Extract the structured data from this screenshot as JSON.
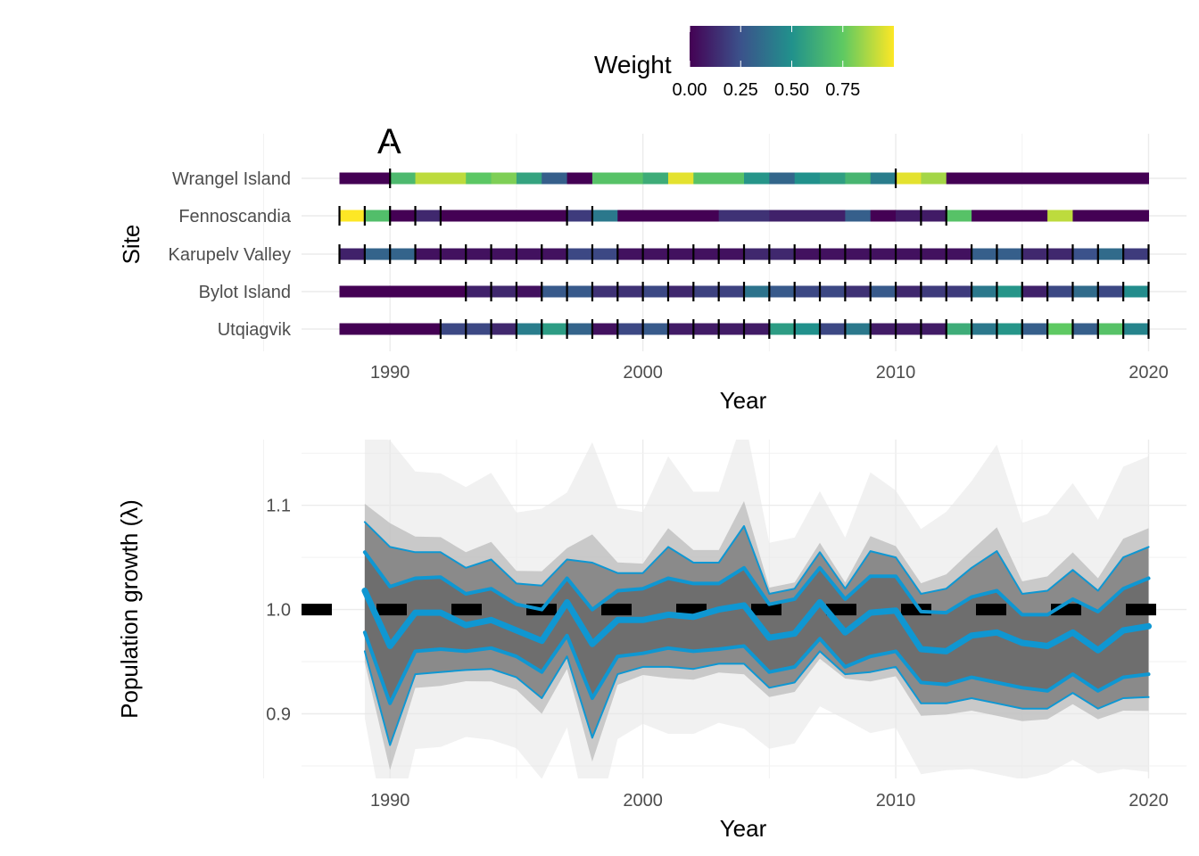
{
  "chart_data": [
    {
      "type": "heatmap",
      "panel_label": "A",
      "xlabel": "Year",
      "ylabel": "Site",
      "xlim": [
        1986.5,
        2021.5
      ],
      "x_ticks": [
        1990,
        2000,
        2010,
        2020
      ],
      "sites": [
        "Wrangel Island",
        "Fennoscandia",
        "Karupelv Valley",
        "Bylot Island",
        "Utqiagvik"
      ],
      "legend": {
        "title": "Weight",
        "ticks": [
          "0.00",
          "0.25",
          "0.50",
          "0.75"
        ],
        "range": [
          0,
          1
        ],
        "position": "top",
        "colors": [
          "#440154",
          "#3b528b",
          "#21918c",
          "#5ec962",
          "#fde725"
        ]
      },
      "rows": [
        {
          "site": "Wrangel Island",
          "marks": [
            1990,
            2010
          ],
          "segments": [
            [
              1988,
              1990,
              0.0
            ],
            [
              1990,
              1991,
              0.68
            ],
            [
              1991,
              1993,
              0.9
            ],
            [
              1993,
              1994,
              0.74
            ],
            [
              1994,
              1995,
              0.8
            ],
            [
              1995,
              1996,
              0.58
            ],
            [
              1996,
              1997,
              0.3
            ],
            [
              1997,
              1998,
              0.0
            ],
            [
              1998,
              2000,
              0.72
            ],
            [
              2000,
              2001,
              0.62
            ],
            [
              2001,
              2002,
              0.96
            ],
            [
              2002,
              2004,
              0.72
            ],
            [
              2004,
              2005,
              0.52
            ],
            [
              2005,
              2006,
              0.33
            ],
            [
              2006,
              2007,
              0.5
            ],
            [
              2007,
              2008,
              0.56
            ],
            [
              2008,
              2009,
              0.66
            ],
            [
              2009,
              2010,
              0.42
            ],
            [
              2010,
              2011,
              0.96
            ],
            [
              2011,
              2012,
              0.86
            ],
            [
              2012,
              2020,
              0.0
            ]
          ]
        },
        {
          "site": "Fennoscandia",
          "marks": [
            1988,
            1989,
            1990,
            1991,
            1992,
            1997,
            1998,
            2011,
            2012
          ],
          "segments": [
            [
              1988,
              1989,
              1.0
            ],
            [
              1989,
              1990,
              0.7
            ],
            [
              1990,
              1991,
              0.0
            ],
            [
              1991,
              1992,
              0.12
            ],
            [
              1992,
              1997,
              0.0
            ],
            [
              1997,
              1998,
              0.18
            ],
            [
              1998,
              1999,
              0.4
            ],
            [
              1999,
              2003,
              0.0
            ],
            [
              2003,
              2005,
              0.15
            ],
            [
              2005,
              2008,
              0.1
            ],
            [
              2008,
              2009,
              0.3
            ],
            [
              2009,
              2010,
              0.0
            ],
            [
              2010,
              2012,
              0.08
            ],
            [
              2012,
              2013,
              0.72
            ],
            [
              2013,
              2016,
              0.0
            ],
            [
              2016,
              2017,
              0.9
            ],
            [
              2017,
              2020,
              0.0
            ]
          ]
        },
        {
          "site": "Karupelv Valley",
          "marks": [
            1988,
            1989,
            1990,
            1991,
            1992,
            1993,
            1994,
            1995,
            1996,
            1997,
            1998,
            1999,
            2000,
            2001,
            2002,
            2003,
            2004,
            2005,
            2006,
            2007,
            2008,
            2009,
            2010,
            2011,
            2012,
            2013,
            2014,
            2015,
            2016,
            2017,
            2018,
            2019,
            2020
          ],
          "segments": [
            [
              1988,
              1989,
              0.1
            ],
            [
              1989,
              1991,
              0.32
            ],
            [
              1991,
              1997,
              0.05
            ],
            [
              1997,
              1999,
              0.22
            ],
            [
              1999,
              2004,
              0.05
            ],
            [
              2004,
              2006,
              0.12
            ],
            [
              2006,
              2013,
              0.05
            ],
            [
              2013,
              2015,
              0.3
            ],
            [
              2015,
              2017,
              0.12
            ],
            [
              2017,
              2018,
              0.25
            ],
            [
              2018,
              2019,
              0.35
            ],
            [
              2019,
              2020,
              0.18
            ]
          ]
        },
        {
          "site": "Bylot Island",
          "marks": [
            1993,
            1994,
            1995,
            1996,
            1997,
            1998,
            1999,
            2000,
            2001,
            2002,
            2003,
            2004,
            2005,
            2006,
            2007,
            2008,
            2009,
            2010,
            2011,
            2012,
            2013,
            2014,
            2015,
            2016,
            2017,
            2018,
            2019,
            2020
          ],
          "segments": [
            [
              1988,
              1993,
              0.0
            ],
            [
              1993,
              1994,
              0.1
            ],
            [
              1994,
              1995,
              0.12
            ],
            [
              1995,
              1996,
              0.05
            ],
            [
              1996,
              1998,
              0.28
            ],
            [
              1998,
              2000,
              0.15
            ],
            [
              2000,
              2001,
              0.22
            ],
            [
              2001,
              2002,
              0.12
            ],
            [
              2002,
              2004,
              0.2
            ],
            [
              2004,
              2005,
              0.38
            ],
            [
              2005,
              2006,
              0.28
            ],
            [
              2006,
              2008,
              0.22
            ],
            [
              2008,
              2009,
              0.15
            ],
            [
              2009,
              2010,
              0.28
            ],
            [
              2010,
              2011,
              0.12
            ],
            [
              2011,
              2013,
              0.18
            ],
            [
              2013,
              2014,
              0.4
            ],
            [
              2014,
              2015,
              0.52
            ],
            [
              2015,
              2016,
              0.1
            ],
            [
              2016,
              2017,
              0.22
            ],
            [
              2017,
              2018,
              0.35
            ],
            [
              2018,
              2019,
              0.22
            ],
            [
              2019,
              2020,
              0.48
            ]
          ]
        },
        {
          "site": "Utqiagvik",
          "marks": [
            1992,
            1993,
            1994,
            1995,
            1996,
            1997,
            1998,
            1999,
            2000,
            2001,
            2002,
            2003,
            2004,
            2005,
            2006,
            2007,
            2008,
            2009,
            2010,
            2011,
            2012,
            2013,
            2014,
            2015,
            2016,
            2017,
            2018,
            2019,
            2020
          ],
          "segments": [
            [
              1988,
              1992,
              0.0
            ],
            [
              1992,
              1994,
              0.22
            ],
            [
              1994,
              1995,
              0.12
            ],
            [
              1995,
              1996,
              0.42
            ],
            [
              1996,
              1997,
              0.55
            ],
            [
              1997,
              1998,
              0.32
            ],
            [
              1998,
              1999,
              0.05
            ],
            [
              1999,
              2000,
              0.22
            ],
            [
              2000,
              2001,
              0.28
            ],
            [
              2001,
              2005,
              0.08
            ],
            [
              2005,
              2006,
              0.55
            ],
            [
              2006,
              2007,
              0.5
            ],
            [
              2007,
              2008,
              0.22
            ],
            [
              2008,
              2009,
              0.4
            ],
            [
              2009,
              2012,
              0.08
            ],
            [
              2012,
              2013,
              0.62
            ],
            [
              2013,
              2014,
              0.4
            ],
            [
              2014,
              2015,
              0.52
            ],
            [
              2015,
              2016,
              0.3
            ],
            [
              2016,
              2017,
              0.75
            ],
            [
              2017,
              2018,
              0.3
            ],
            [
              2018,
              2019,
              0.72
            ],
            [
              2019,
              2020,
              0.45
            ]
          ]
        }
      ]
    },
    {
      "type": "line",
      "xlabel": "Year",
      "ylabel": "Population growth (λ)",
      "xlim": [
        1986.5,
        2021.5
      ],
      "ylim": [
        0.838,
        1.163
      ],
      "x_ticks": [
        1990,
        2000,
        2010,
        2020
      ],
      "y_ticks": [
        "0.9",
        "1.0",
        "1.1"
      ],
      "reference_line": 1.0,
      "grid": true,
      "x": [
        1989,
        1990,
        1991,
        1992,
        1993,
        1994,
        1995,
        1996,
        1997,
        1998,
        1999,
        2000,
        2001,
        2002,
        2003,
        2004,
        2005,
        2006,
        2007,
        2008,
        2009,
        2010,
        2011,
        2012,
        2013,
        2014,
        2015,
        2016,
        2017,
        2018,
        2019,
        2020
      ],
      "series": [
        {
          "role": "median",
          "values": [
            1.018,
            0.965,
            0.997,
            0.997,
            0.985,
            0.99,
            0.98,
            0.97,
            1.007,
            0.967,
            0.99,
            0.99,
            0.995,
            0.993,
            1.0,
            1.004,
            0.973,
            0.977,
            1.007,
            0.978,
            0.997,
            0.999,
            0.962,
            0.96,
            0.975,
            0.978,
            0.968,
            0.965,
            0.978,
            0.961,
            0.98,
            0.984
          ]
        },
        {
          "role": "upper-inner",
          "values": [
            1.055,
            1.022,
            1.03,
            1.031,
            1.015,
            1.02,
            1.005,
            1.0,
            1.03,
            1.0,
            1.018,
            1.02,
            1.03,
            1.025,
            1.025,
            1.04,
            1.005,
            1.01,
            1.04,
            1.01,
            1.032,
            1.032,
            0.998,
            0.997,
            1.012,
            1.018,
            0.995,
            0.995,
            1.01,
            0.998,
            1.02,
            1.03
          ]
        },
        {
          "role": "lower-inner",
          "values": [
            0.978,
            0.91,
            0.96,
            0.962,
            0.96,
            0.963,
            0.955,
            0.94,
            0.975,
            0.915,
            0.955,
            0.958,
            0.963,
            0.96,
            0.962,
            0.965,
            0.94,
            0.945,
            0.972,
            0.945,
            0.955,
            0.96,
            0.93,
            0.928,
            0.935,
            0.93,
            0.925,
            0.922,
            0.938,
            0.922,
            0.935,
            0.938
          ]
        },
        {
          "role": "upper-outer",
          "values": [
            1.084,
            1.06,
            1.055,
            1.055,
            1.04,
            1.048,
            1.025,
            1.023,
            1.048,
            1.045,
            1.035,
            1.035,
            1.06,
            1.045,
            1.045,
            1.08,
            1.015,
            1.02,
            1.055,
            1.02,
            1.056,
            1.05,
            1.015,
            1.02,
            1.04,
            1.056,
            1.015,
            1.018,
            1.038,
            1.018,
            1.05,
            1.06
          ]
        },
        {
          "role": "lower-outer",
          "values": [
            0.96,
            0.87,
            0.938,
            0.94,
            0.942,
            0.943,
            0.935,
            0.915,
            0.955,
            0.877,
            0.938,
            0.945,
            0.945,
            0.943,
            0.948,
            0.948,
            0.925,
            0.93,
            0.96,
            0.938,
            0.94,
            0.945,
            0.91,
            0.91,
            0.915,
            0.91,
            0.905,
            0.905,
            0.92,
            0.905,
            0.915,
            0.916
          ]
        }
      ]
    }
  ]
}
